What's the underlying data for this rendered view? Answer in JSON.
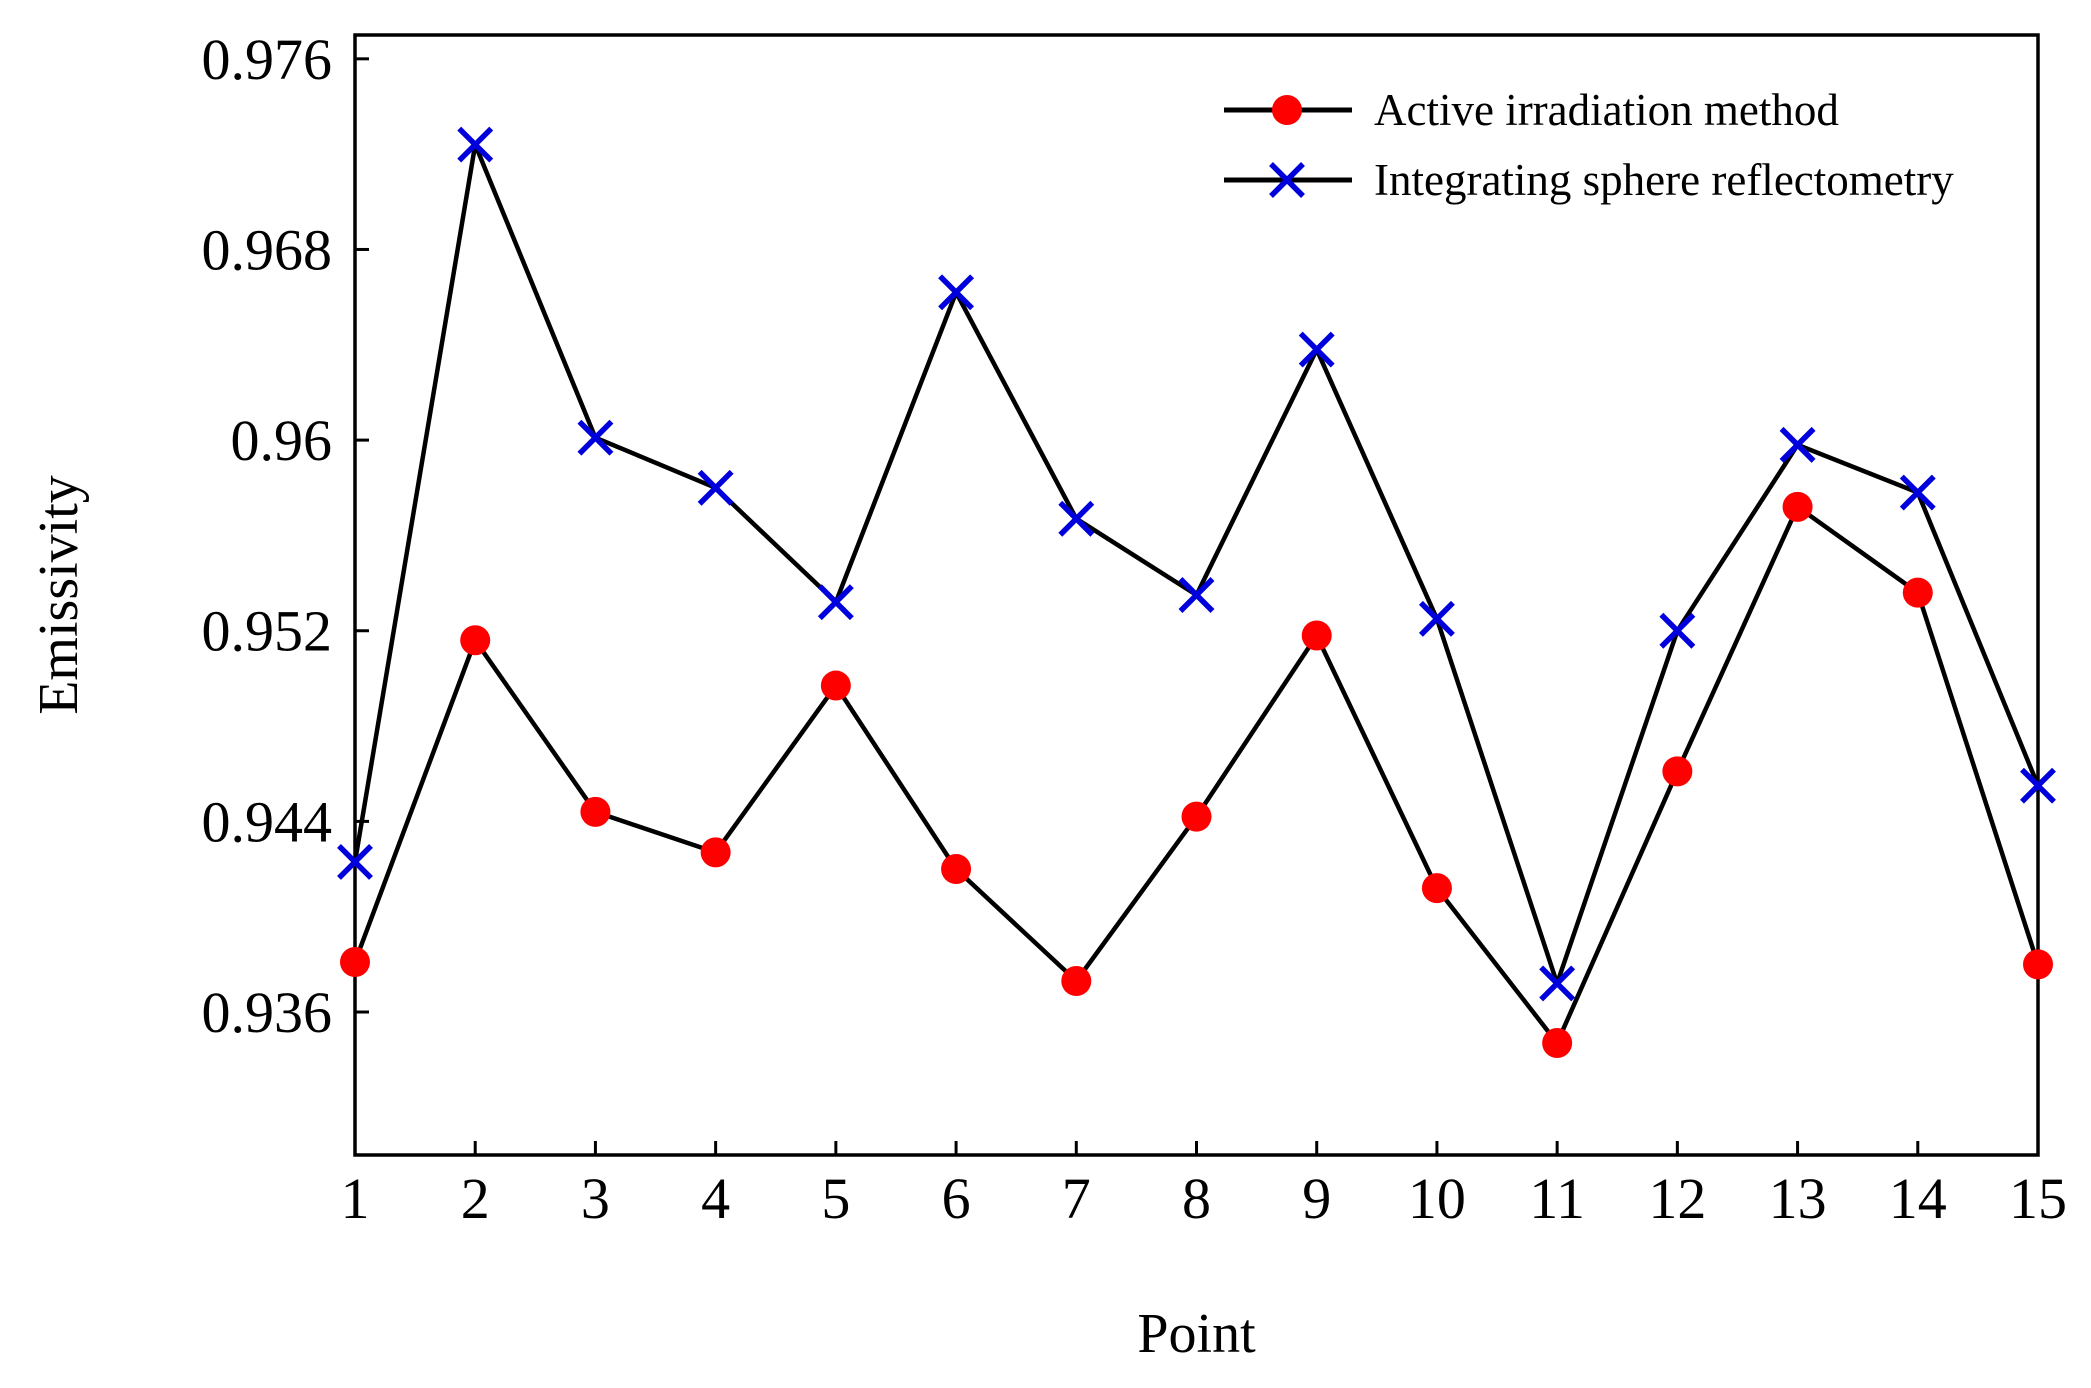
{
  "chart_data": {
    "type": "line",
    "title": "",
    "xlabel": "Point",
    "ylabel": "Emissivity",
    "x": [
      1,
      2,
      3,
      4,
      5,
      6,
      7,
      8,
      9,
      10,
      11,
      12,
      13,
      14,
      15
    ],
    "xlim": [
      1,
      15
    ],
    "ylim": [
      0.93,
      0.977
    ],
    "y_ticks": [
      0.936,
      0.944,
      0.952,
      0.96,
      0.968,
      0.976
    ],
    "y_tick_labels": [
      "0.936",
      "0.944",
      "0.952",
      "0.96",
      "0.968",
      "0.976"
    ],
    "x_tick_labels": [
      "1",
      "2",
      "3",
      "4",
      "5",
      "6",
      "7",
      "8",
      "9",
      "10",
      "11",
      "12",
      "13",
      "14",
      "15"
    ],
    "grid": false,
    "legend_position": "top-right",
    "series": [
      {
        "name": "Active irradiation method",
        "marker": "circle",
        "marker_color": "#ff0000",
        "line_color": "#000000",
        "values": [
          0.9381,
          0.9516,
          0.9444,
          0.9427,
          0.9497,
          0.942,
          0.9373,
          0.9442,
          0.9518,
          0.9412,
          0.9347,
          0.9461,
          0.9572,
          0.9536,
          0.938
        ]
      },
      {
        "name": "Integrating sphere reflectometry",
        "marker": "x",
        "marker_color": "#0000dd",
        "line_color": "#000000",
        "values": [
          0.9423,
          0.9724,
          0.9601,
          0.958,
          0.9532,
          0.9662,
          0.9567,
          0.9535,
          0.9638,
          0.9525,
          0.9372,
          0.952,
          0.9598,
          0.9578,
          0.9455
        ]
      }
    ]
  }
}
